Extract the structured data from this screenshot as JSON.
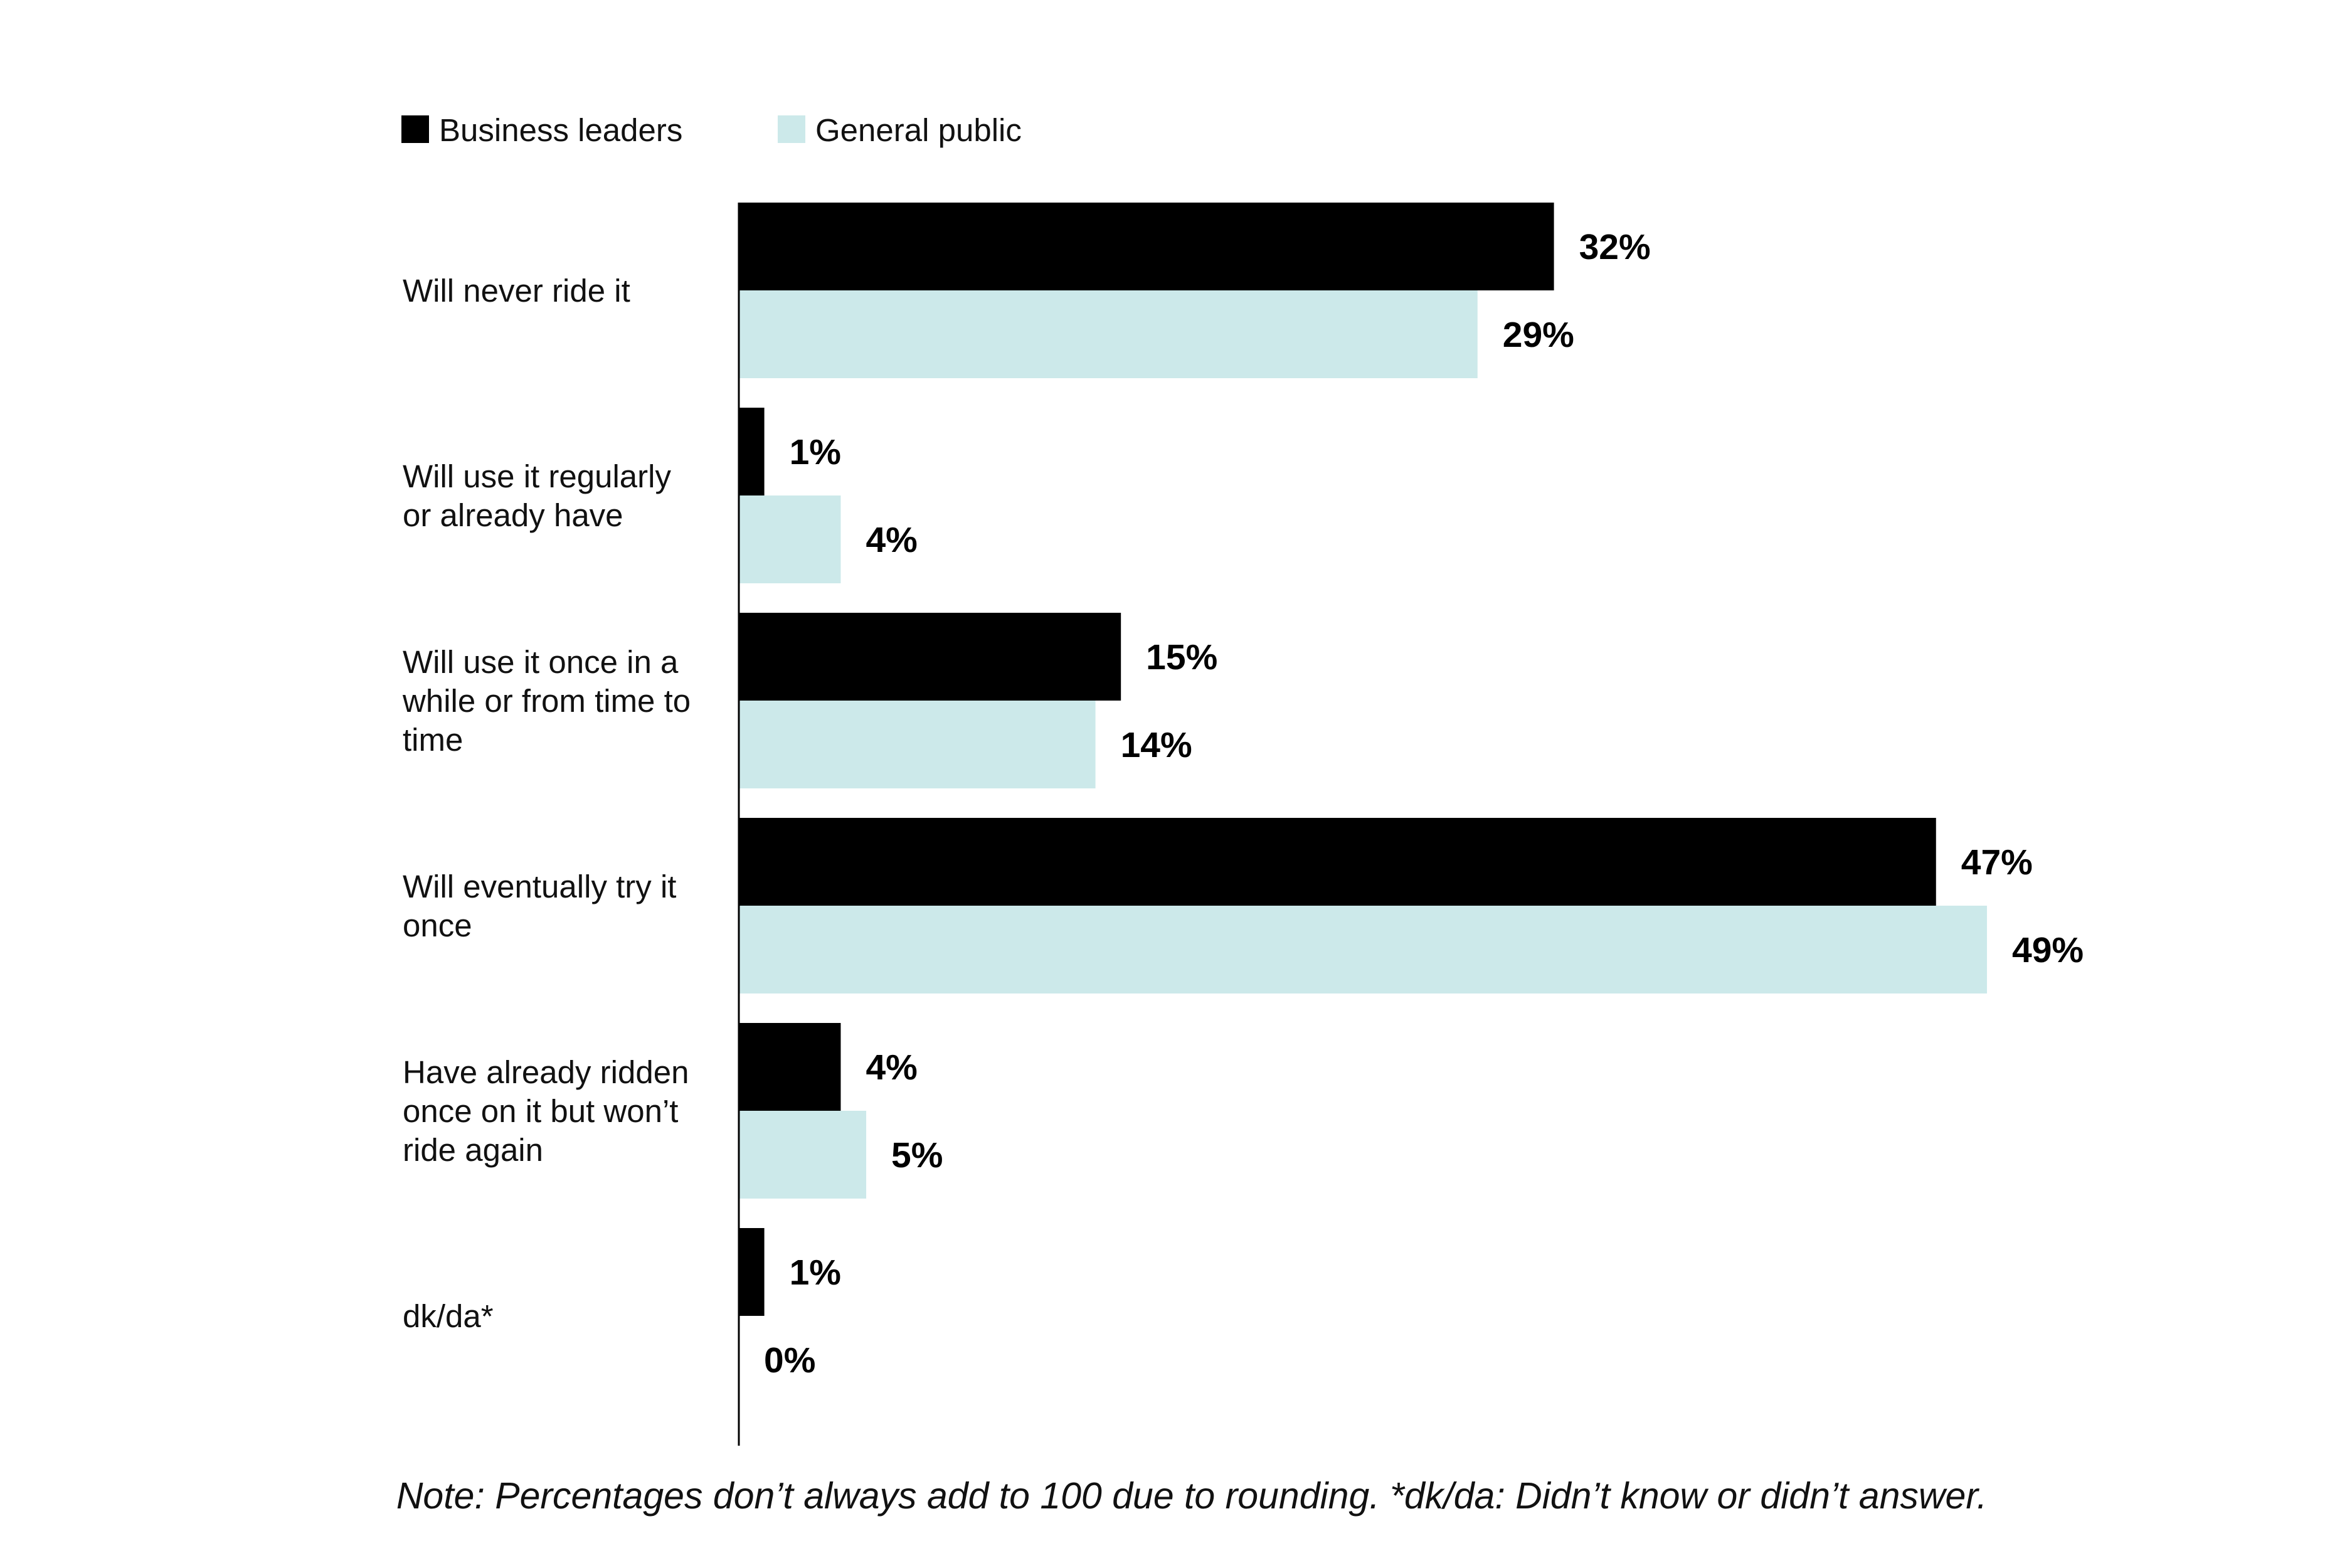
{
  "chart_data": {
    "type": "bar",
    "orientation": "horizontal",
    "categories": [
      [
        "Will never ride it"
      ],
      [
        "Will use it regularly",
        "or already have"
      ],
      [
        "Will use it once in a",
        "while or from time to",
        "time"
      ],
      [
        "Will eventually try it",
        "once"
      ],
      [
        "Have already ridden",
        "once on it but won’t",
        "ride again"
      ],
      [
        "dk/da*"
      ]
    ],
    "series": [
      {
        "name": "Business leaders",
        "color": "#000000",
        "values": [
          32,
          1,
          15,
          47,
          4,
          1
        ],
        "labels": [
          "32%",
          "1%",
          "15%",
          "47%",
          "4%",
          "1%"
        ]
      },
      {
        "name": "General public",
        "color": "#cce9ea",
        "values": [
          29,
          4,
          14,
          49,
          5,
          0
        ],
        "labels": [
          "29%",
          "4%",
          "14%",
          "49%",
          "5%",
          "0%"
        ]
      }
    ],
    "xlim": [
      0,
      50
    ],
    "grid": false,
    "legend": "top-left",
    "note": "Note: Percentages don’t always add to 100 due to rounding. *dk/da: Didn’t know or didn’t answer."
  }
}
